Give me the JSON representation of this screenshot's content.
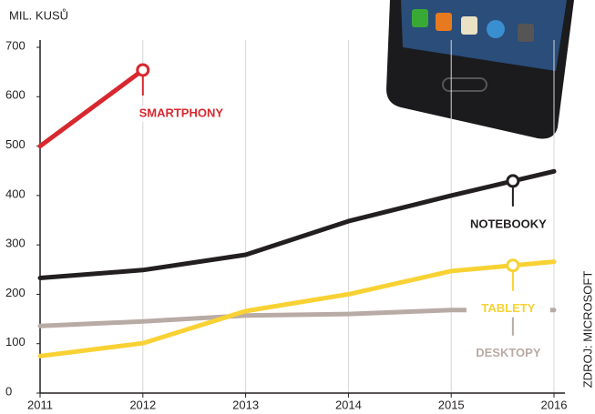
{
  "chart_data": {
    "type": "line",
    "y_label": "MIL. KUSŮ",
    "source": "ZDROJ: MICROSOFT",
    "x": [
      2011,
      2012,
      2013,
      2014,
      2015,
      2016
    ],
    "xlim": [
      2011,
      2016
    ],
    "xticks": [
      2011,
      2012,
      2013,
      2014,
      2015,
      2016
    ],
    "ylim": [
      0,
      700
    ],
    "yticks": [
      0,
      100,
      200,
      300,
      400,
      500,
      600,
      700
    ],
    "grid": true,
    "series": [
      {
        "name": "DESKTOPY",
        "color": "#b8aaa4",
        "values": [
          136,
          145,
          157,
          160,
          168,
          168
        ]
      },
      {
        "name": "TABLETY",
        "color": "#f8d234",
        "values": [
          75,
          101,
          166,
          200,
          247,
          266
        ]
      },
      {
        "name": "NOTEBOOKY",
        "color": "#231f20",
        "values": [
          233,
          249,
          280,
          348,
          400,
          449
        ]
      },
      {
        "name": "SMARTPHONY",
        "color": "#d7282f",
        "values": [
          500,
          654,
          null,
          null,
          null,
          null
        ]
      }
    ]
  }
}
